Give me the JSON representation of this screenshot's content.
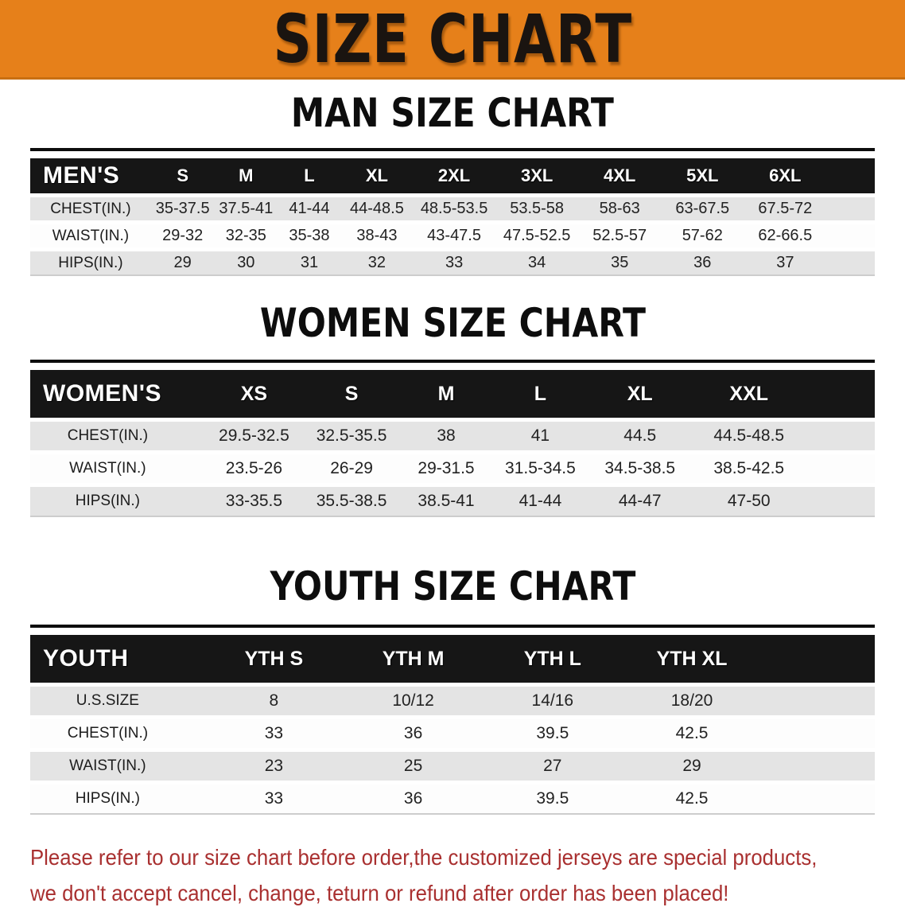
{
  "banner": {
    "title": "SIZE CHART"
  },
  "sections": [
    {
      "heading": "MAN SIZE CHART",
      "table": {
        "header_label": "MEN'S",
        "columns": [
          "S",
          "M",
          "L",
          "XL",
          "2XL",
          "3XL",
          "4XL",
          "5XL",
          "6XL"
        ],
        "rows": [
          {
            "label": "CHEST(IN.)",
            "values": [
              "35-37.5",
              "37.5-41",
              "41-44",
              "44-48.5",
              "48.5-53.5",
              "53.5-58",
              "58-63",
              "63-67.5",
              "67.5-72"
            ]
          },
          {
            "label": "WAIST(IN.)",
            "values": [
              "29-32",
              "32-35",
              "35-38",
              "38-43",
              "43-47.5",
              "47.5-52.5",
              "52.5-57",
              "57-62",
              "62-66.5"
            ]
          },
          {
            "label": "HIPS(IN.)",
            "values": [
              "29",
              "30",
              "31",
              "32",
              "33",
              "34",
              "35",
              "36",
              "37"
            ]
          }
        ]
      }
    },
    {
      "heading": "WOMEN SIZE CHART",
      "table": {
        "header_label": "WOMEN'S",
        "columns": [
          "XS",
          "S",
          "M",
          "L",
          "XL",
          "XXL"
        ],
        "rows": [
          {
            "label": "CHEST(IN.)",
            "values": [
              "29.5-32.5",
              "32.5-35.5",
              "38",
              "41",
              "44.5",
              "44.5-48.5"
            ]
          },
          {
            "label": "WAIST(IN.)",
            "values": [
              "23.5-26",
              "26-29",
              "29-31.5",
              "31.5-34.5",
              "34.5-38.5",
              "38.5-42.5"
            ]
          },
          {
            "label": "HIPS(IN.)",
            "values": [
              "33-35.5",
              "35.5-38.5",
              "38.5-41",
              "41-44",
              "44-47",
              "47-50"
            ]
          }
        ]
      }
    },
    {
      "heading": "YOUTH SIZE CHART",
      "table": {
        "header_label": "YOUTH",
        "columns": [
          "YTH S",
          "YTH M",
          "YTH L",
          "YTH XL"
        ],
        "rows": [
          {
            "label": "U.S.SIZE",
            "values": [
              "8",
              "10/12",
              "14/16",
              "18/20"
            ]
          },
          {
            "label": "CHEST(IN.)",
            "values": [
              "33",
              "36",
              "39.5",
              "42.5"
            ]
          },
          {
            "label": "WAIST(IN.)",
            "values": [
              "23",
              "25",
              "27",
              "29"
            ]
          },
          {
            "label": "HIPS(IN.)",
            "values": [
              "33",
              "36",
              "39.5",
              "42.5"
            ]
          }
        ]
      }
    }
  ],
  "footer": {
    "lines": [
      "Please refer to our size chart before order,the customized jerseys are special products,",
      "we don't accept cancel, change, teturn or refund after order has been placed!"
    ]
  },
  "colors": {
    "banner_bg": "#E6801A",
    "banner_edge": "#C96F12",
    "header_bar": "#161616",
    "row_shade": "#E4E4E4",
    "notice_text": "#A93030"
  }
}
